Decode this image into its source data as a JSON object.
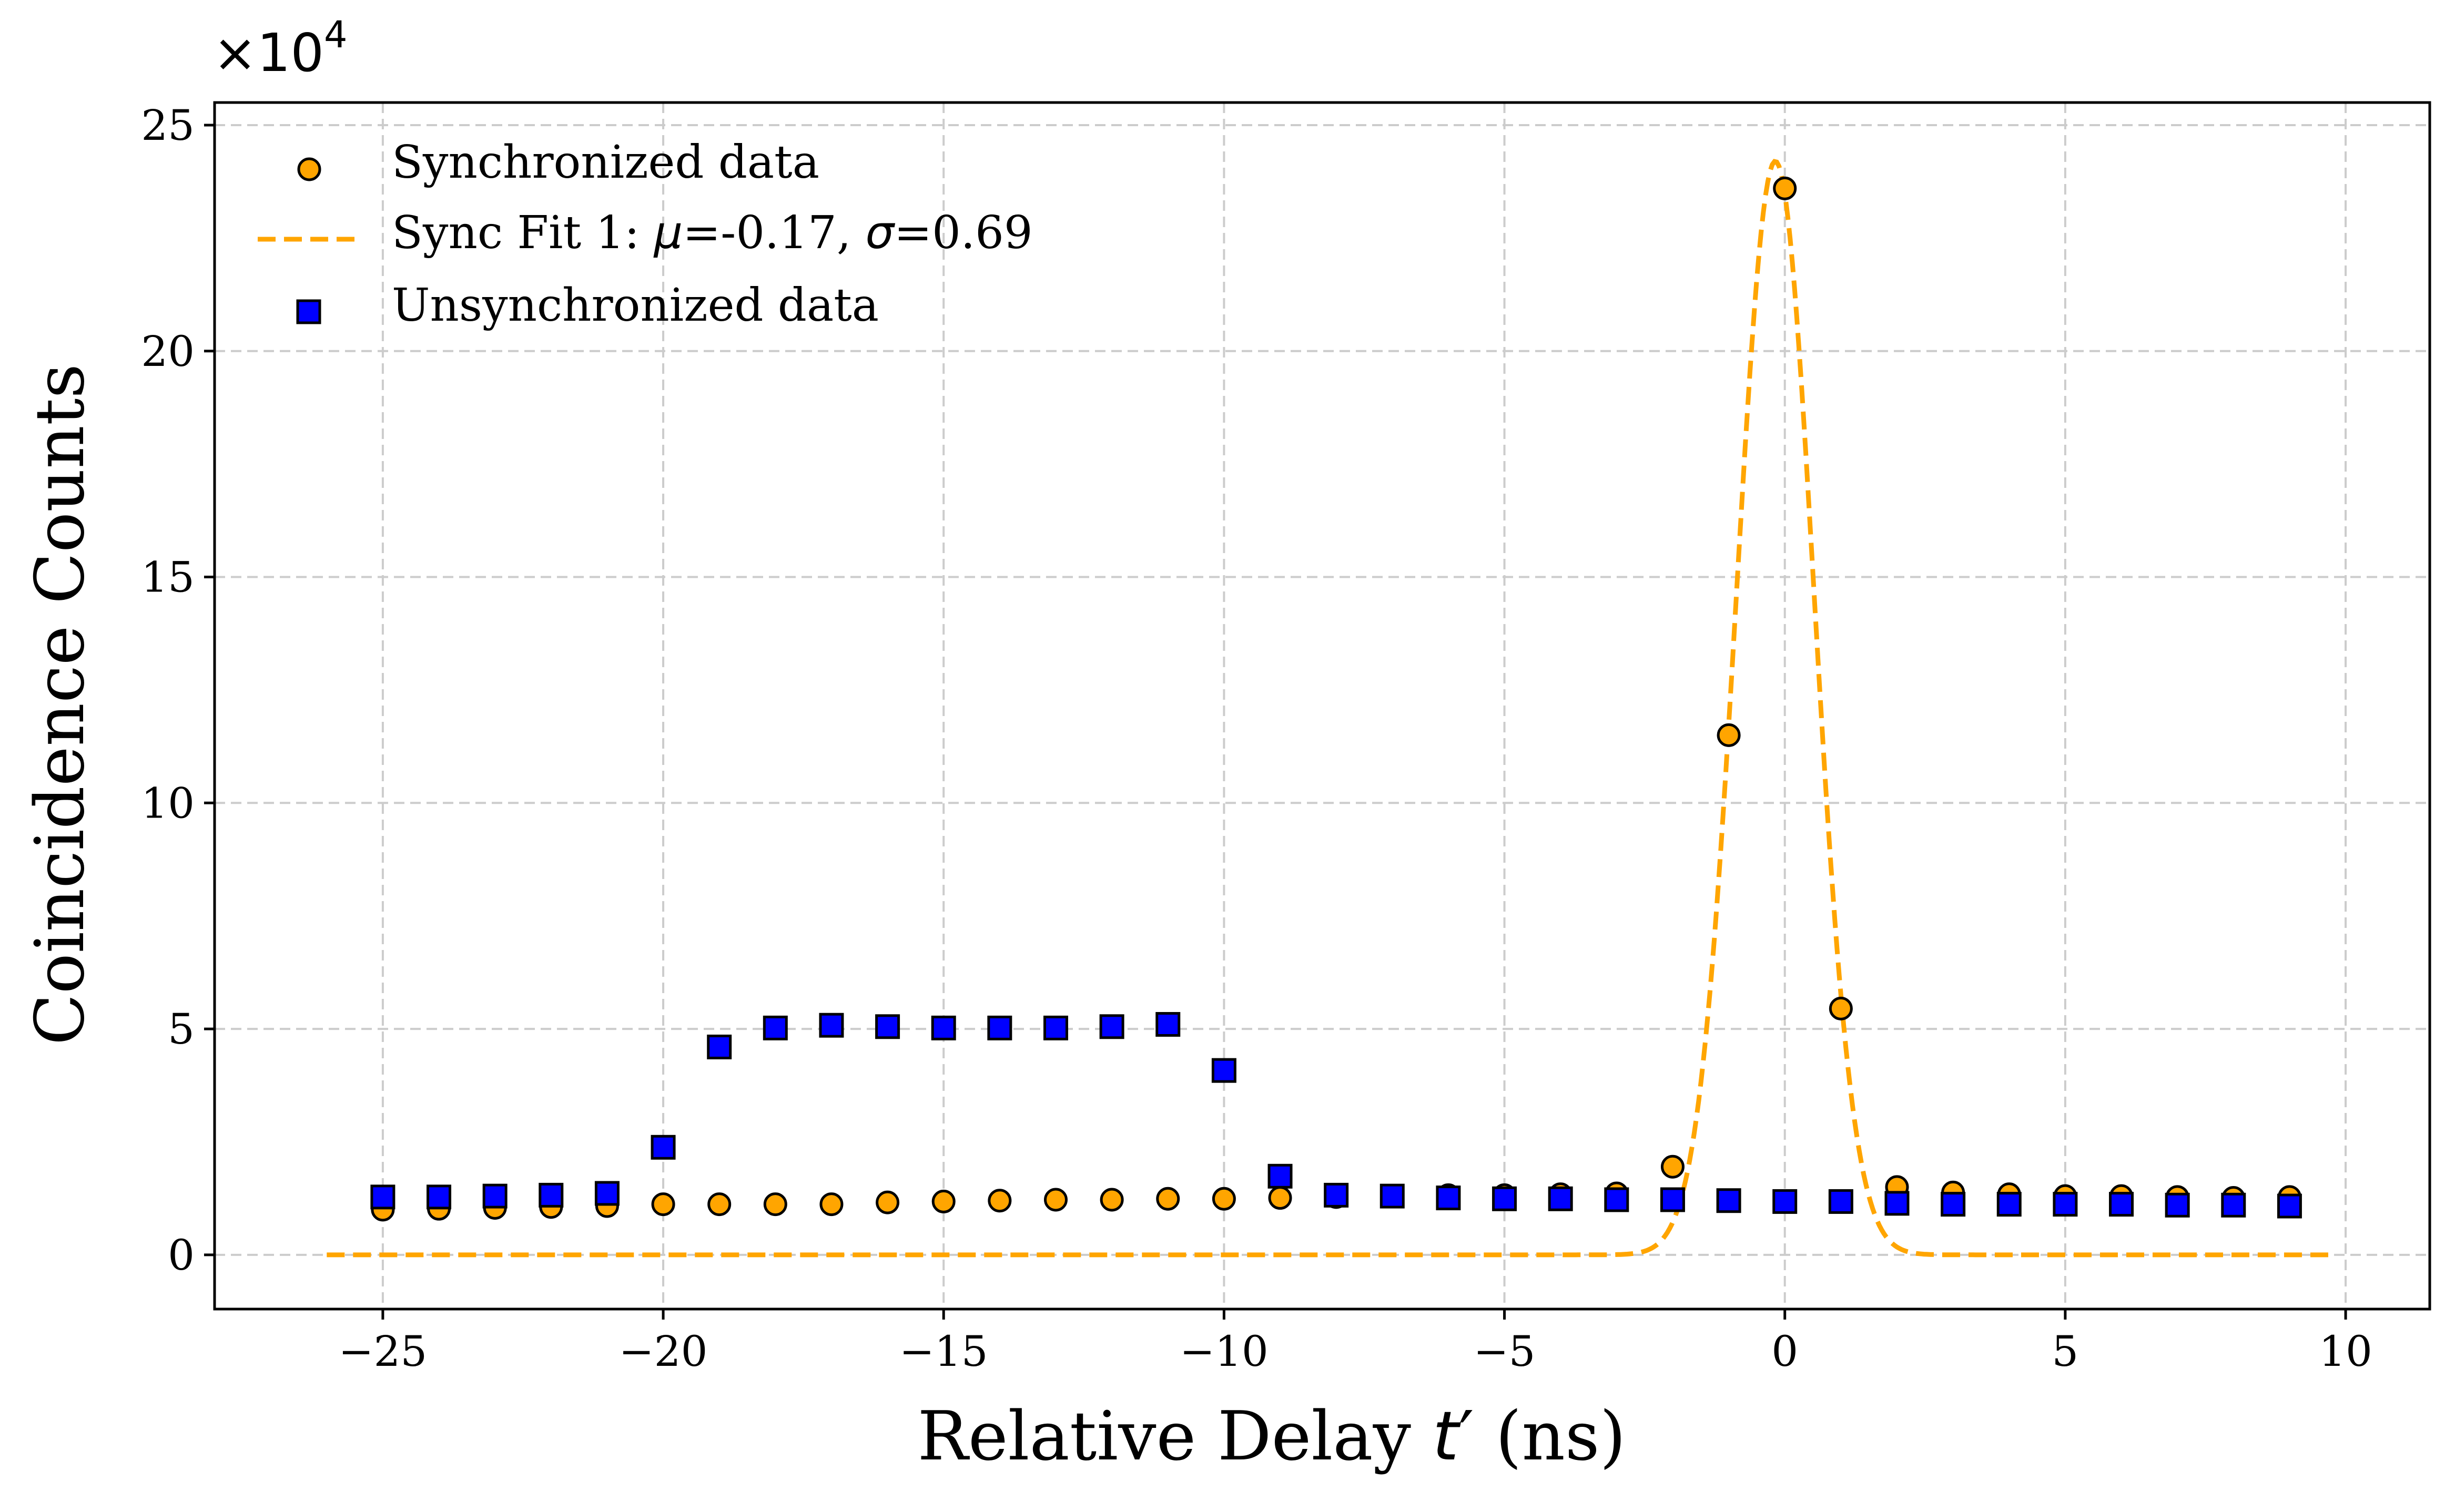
{
  "chart_data": {
    "type": "scatter",
    "title": "",
    "xlabel_prefix": "Relative Delay ",
    "xlabel_var": "t",
    "xlabel_prime": "′",
    "xlabel_suffix": " (ns)",
    "ylabel": "Coincidence Counts",
    "y_multiplier_label": "×10",
    "y_multiplier_exp": "4",
    "xlim": [
      -28,
      11.5
    ],
    "ylim": [
      -1.2,
      25.5
    ],
    "xticks": [
      -25,
      -20,
      -15,
      -10,
      -5,
      0,
      5,
      10
    ],
    "xtick_labels": [
      "−25",
      "−20",
      "−15",
      "−10",
      "−5",
      "0",
      "5",
      "10"
    ],
    "yticks": [
      0,
      5,
      10,
      15,
      20,
      25
    ],
    "ytick_labels": [
      "0",
      "5",
      "10",
      "15",
      "20",
      "25"
    ],
    "grid": true,
    "legend_position": "upper-left",
    "units_note": "y values in units of 10^4 counts",
    "series": [
      {
        "name": "Synchronized data",
        "kind": "scatter",
        "marker": "circle",
        "color": "#ffa500",
        "edge_color": "#000000",
        "x": [
          -25,
          -24,
          -23,
          -22,
          -21,
          -20,
          -19,
          -18,
          -17,
          -16,
          -15,
          -14,
          -13,
          -12,
          -11,
          -10,
          -9,
          -8,
          -7,
          -6,
          -5,
          -4,
          -3,
          -2,
          -1,
          0,
          1,
          2,
          3,
          4,
          5,
          6,
          7,
          8,
          9
        ],
        "y": [
          1.0,
          1.02,
          1.04,
          1.06,
          1.08,
          1.12,
          1.12,
          1.12,
          1.12,
          1.16,
          1.18,
          1.2,
          1.22,
          1.22,
          1.24,
          1.24,
          1.26,
          1.28,
          1.3,
          1.32,
          1.32,
          1.34,
          1.36,
          1.95,
          11.5,
          23.6,
          5.45,
          1.5,
          1.38,
          1.34,
          1.3,
          1.3,
          1.28,
          1.26,
          1.28
        ]
      },
      {
        "name": "Sync Fit 1: ",
        "label_mu": "μ",
        "label_mu_value": "=-0.17, ",
        "label_sigma": "σ",
        "label_sigma_value": "=0.69",
        "kind": "line",
        "line_style": "dashed",
        "color": "#ffa500",
        "mu": -0.17,
        "sigma": 0.69,
        "amplitude": 24.2,
        "x_range": [
          -26,
          9.8
        ]
      },
      {
        "name": "Unsynchronized data",
        "kind": "scatter",
        "marker": "square",
        "color": "#0000ff",
        "edge_color": "#000000",
        "x": [
          -25,
          -24,
          -23,
          -22,
          -21,
          -20,
          -19,
          -18,
          -17,
          -16,
          -15,
          -14,
          -13,
          -12,
          -11,
          -10,
          -9,
          -8,
          -7,
          -6,
          -5,
          -4,
          -3,
          -2,
          -1,
          0,
          1,
          2,
          3,
          4,
          5,
          6,
          7,
          8,
          9
        ],
        "y": [
          1.28,
          1.28,
          1.3,
          1.32,
          1.36,
          2.38,
          4.6,
          5.02,
          5.08,
          5.05,
          5.02,
          5.02,
          5.02,
          5.05,
          5.1,
          4.08,
          1.74,
          1.32,
          1.3,
          1.26,
          1.24,
          1.24,
          1.22,
          1.22,
          1.2,
          1.18,
          1.18,
          1.14,
          1.12,
          1.12,
          1.12,
          1.12,
          1.1,
          1.1,
          1.08
        ]
      }
    ]
  }
}
